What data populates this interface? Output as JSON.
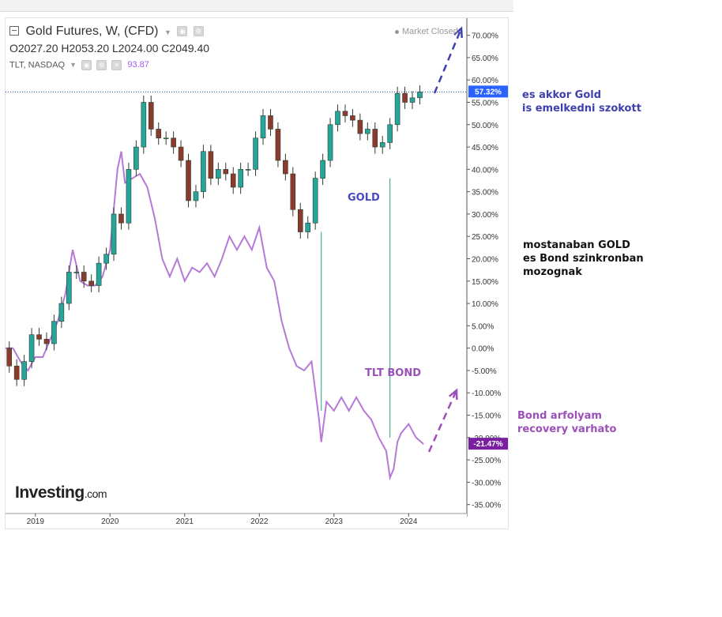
{
  "header": {
    "instrument": "Gold Futures, W, (CFD)",
    "ohlc": {
      "open": "O2027.20",
      "high": "H2053.20",
      "low": "L2024.00",
      "close": "C2049.40"
    },
    "overlay_symbol": "TLT, NASDAQ",
    "overlay_value": "93.87",
    "market_status": "Market Closed"
  },
  "logo": {
    "brand": "Investing",
    "suffix": ".com"
  },
  "annotations": {
    "gold_up_1": "es akkor Gold",
    "gold_up_2": "is emelkedni szokott",
    "sync_1": "mostanaban GOLD",
    "sync_2": "es Bond szinkronban",
    "sync_3": "mozognak",
    "bond_1": "Bond arfolyam",
    "bond_2": "recovery varhato",
    "gold_label": "GOLD",
    "tlt_label": "TLT BOND"
  },
  "colors": {
    "candle_up": "#26a69a",
    "candle_down": "#8b3a2e",
    "candle_outline": "#2f3b2f",
    "tlt_line": "#b57ad6",
    "gold_badge": "#2962ff",
    "tlt_badge": "#7b1fa2",
    "arrow_gold": "#3f3fb0",
    "arrow_bond": "#9b4fb8",
    "vline": "#2a9d8f"
  },
  "chart_data": {
    "type": "line",
    "x_ticks": [
      "2019",
      "2020",
      "2021",
      "2022",
      "2023",
      "2024"
    ],
    "y_ticks": [
      "70.00%",
      "65.00%",
      "60.00%",
      "55.00%",
      "50.00%",
      "45.00%",
      "40.00%",
      "35.00%",
      "30.00%",
      "25.00%",
      "20.00%",
      "15.00%",
      "10.00%",
      "5.00%",
      "0.00%",
      "-5.00%",
      "-10.00%",
      "-15.00%",
      "-20.00%",
      "-25.00%",
      "-30.00%",
      "-35.00%"
    ],
    "y_unit": "%",
    "ylim": [
      -37,
      74
    ],
    "xlim": [
      2018.6,
      2024.78
    ],
    "last_values": {
      "gold": "57.32%",
      "tlt": "-21.47%"
    },
    "series": [
      {
        "name": "Gold Futures",
        "style": "candles",
        "x": [
          2018.6,
          2018.7,
          2018.8,
          2018.9,
          2019.0,
          2019.1,
          2019.2,
          2019.3,
          2019.4,
          2019.5,
          2019.6,
          2019.7,
          2019.8,
          2019.9,
          2020.0,
          2020.1,
          2020.2,
          2020.3,
          2020.4,
          2020.5,
          2020.6,
          2020.7,
          2020.8,
          2020.9,
          2021.0,
          2021.1,
          2021.2,
          2021.3,
          2021.4,
          2021.5,
          2021.6,
          2021.7,
          2021.8,
          2021.9,
          2022.0,
          2022.1,
          2022.2,
          2022.3,
          2022.4,
          2022.5,
          2022.6,
          2022.7,
          2022.8,
          2022.9,
          2023.0,
          2023.1,
          2023.2,
          2023.3,
          2023.4,
          2023.5,
          2023.6,
          2023.7,
          2023.8,
          2023.9,
          2024.0,
          2024.1,
          2024.2
        ],
        "values": [
          0.0,
          -4.0,
          -7.0,
          -3.0,
          3.0,
          2.0,
          1.0,
          6.0,
          10.0,
          17.0,
          17.0,
          15.0,
          14.0,
          19.0,
          21.0,
          30.0,
          28.0,
          40.0,
          45.0,
          55.0,
          49.0,
          47.0,
          47.0,
          45.0,
          42.0,
          33.0,
          35.0,
          44.0,
          38.0,
          40.0,
          39.0,
          36.0,
          40.0,
          40.0,
          47.0,
          52.0,
          49.0,
          42.0,
          39.0,
          31.0,
          26.0,
          28.0,
          38.0,
          42.0,
          50.0,
          53.0,
          52.0,
          51.0,
          48.0,
          49.0,
          45.0,
          46.0,
          50.0,
          57.0,
          55.0,
          56.0,
          57.32
        ]
      },
      {
        "name": "TLT, NASDAQ",
        "style": "line",
        "x": [
          2018.6,
          2018.7,
          2018.8,
          2018.9,
          2019.0,
          2019.1,
          2019.2,
          2019.3,
          2019.4,
          2019.5,
          2019.6,
          2019.7,
          2019.8,
          2019.9,
          2020.0,
          2020.1,
          2020.15,
          2020.2,
          2020.3,
          2020.4,
          2020.5,
          2020.6,
          2020.7,
          2020.8,
          2020.9,
          2021.0,
          2021.1,
          2021.2,
          2021.3,
          2021.4,
          2021.5,
          2021.6,
          2021.7,
          2021.8,
          2021.9,
          2022.0,
          2022.1,
          2022.2,
          2022.3,
          2022.4,
          2022.5,
          2022.6,
          2022.7,
          2022.8,
          2022.83,
          2022.9,
          2023.0,
          2023.1,
          2023.2,
          2023.3,
          2023.4,
          2023.5,
          2023.6,
          2023.7,
          2023.75,
          2023.8,
          2023.85,
          2023.9,
          2024.0,
          2024.1,
          2024.2
        ],
        "values": [
          0.0,
          0.0,
          -3.0,
          -5.0,
          -2.0,
          -2.0,
          2.0,
          6.0,
          12.0,
          22.0,
          15.0,
          14.0,
          14.0,
          16.0,
          22.0,
          40.0,
          44.0,
          37.0,
          38.0,
          39.0,
          36.0,
          29.0,
          20.0,
          16.0,
          20.0,
          15.0,
          18.0,
          17.0,
          19.0,
          16.0,
          20.0,
          25.0,
          22.0,
          25.0,
          22.0,
          27.0,
          18.0,
          15.0,
          6.0,
          0.0,
          -4.0,
          -5.0,
          -3.0,
          -16.0,
          -21.0,
          -12.0,
          -14.0,
          -11.0,
          -14.0,
          -11.0,
          -14.0,
          -16.0,
          -20.0,
          -23.0,
          -29.0,
          -27.0,
          -21.0,
          -19.0,
          -17.0,
          -20.0,
          -21.47
        ]
      }
    ]
  }
}
